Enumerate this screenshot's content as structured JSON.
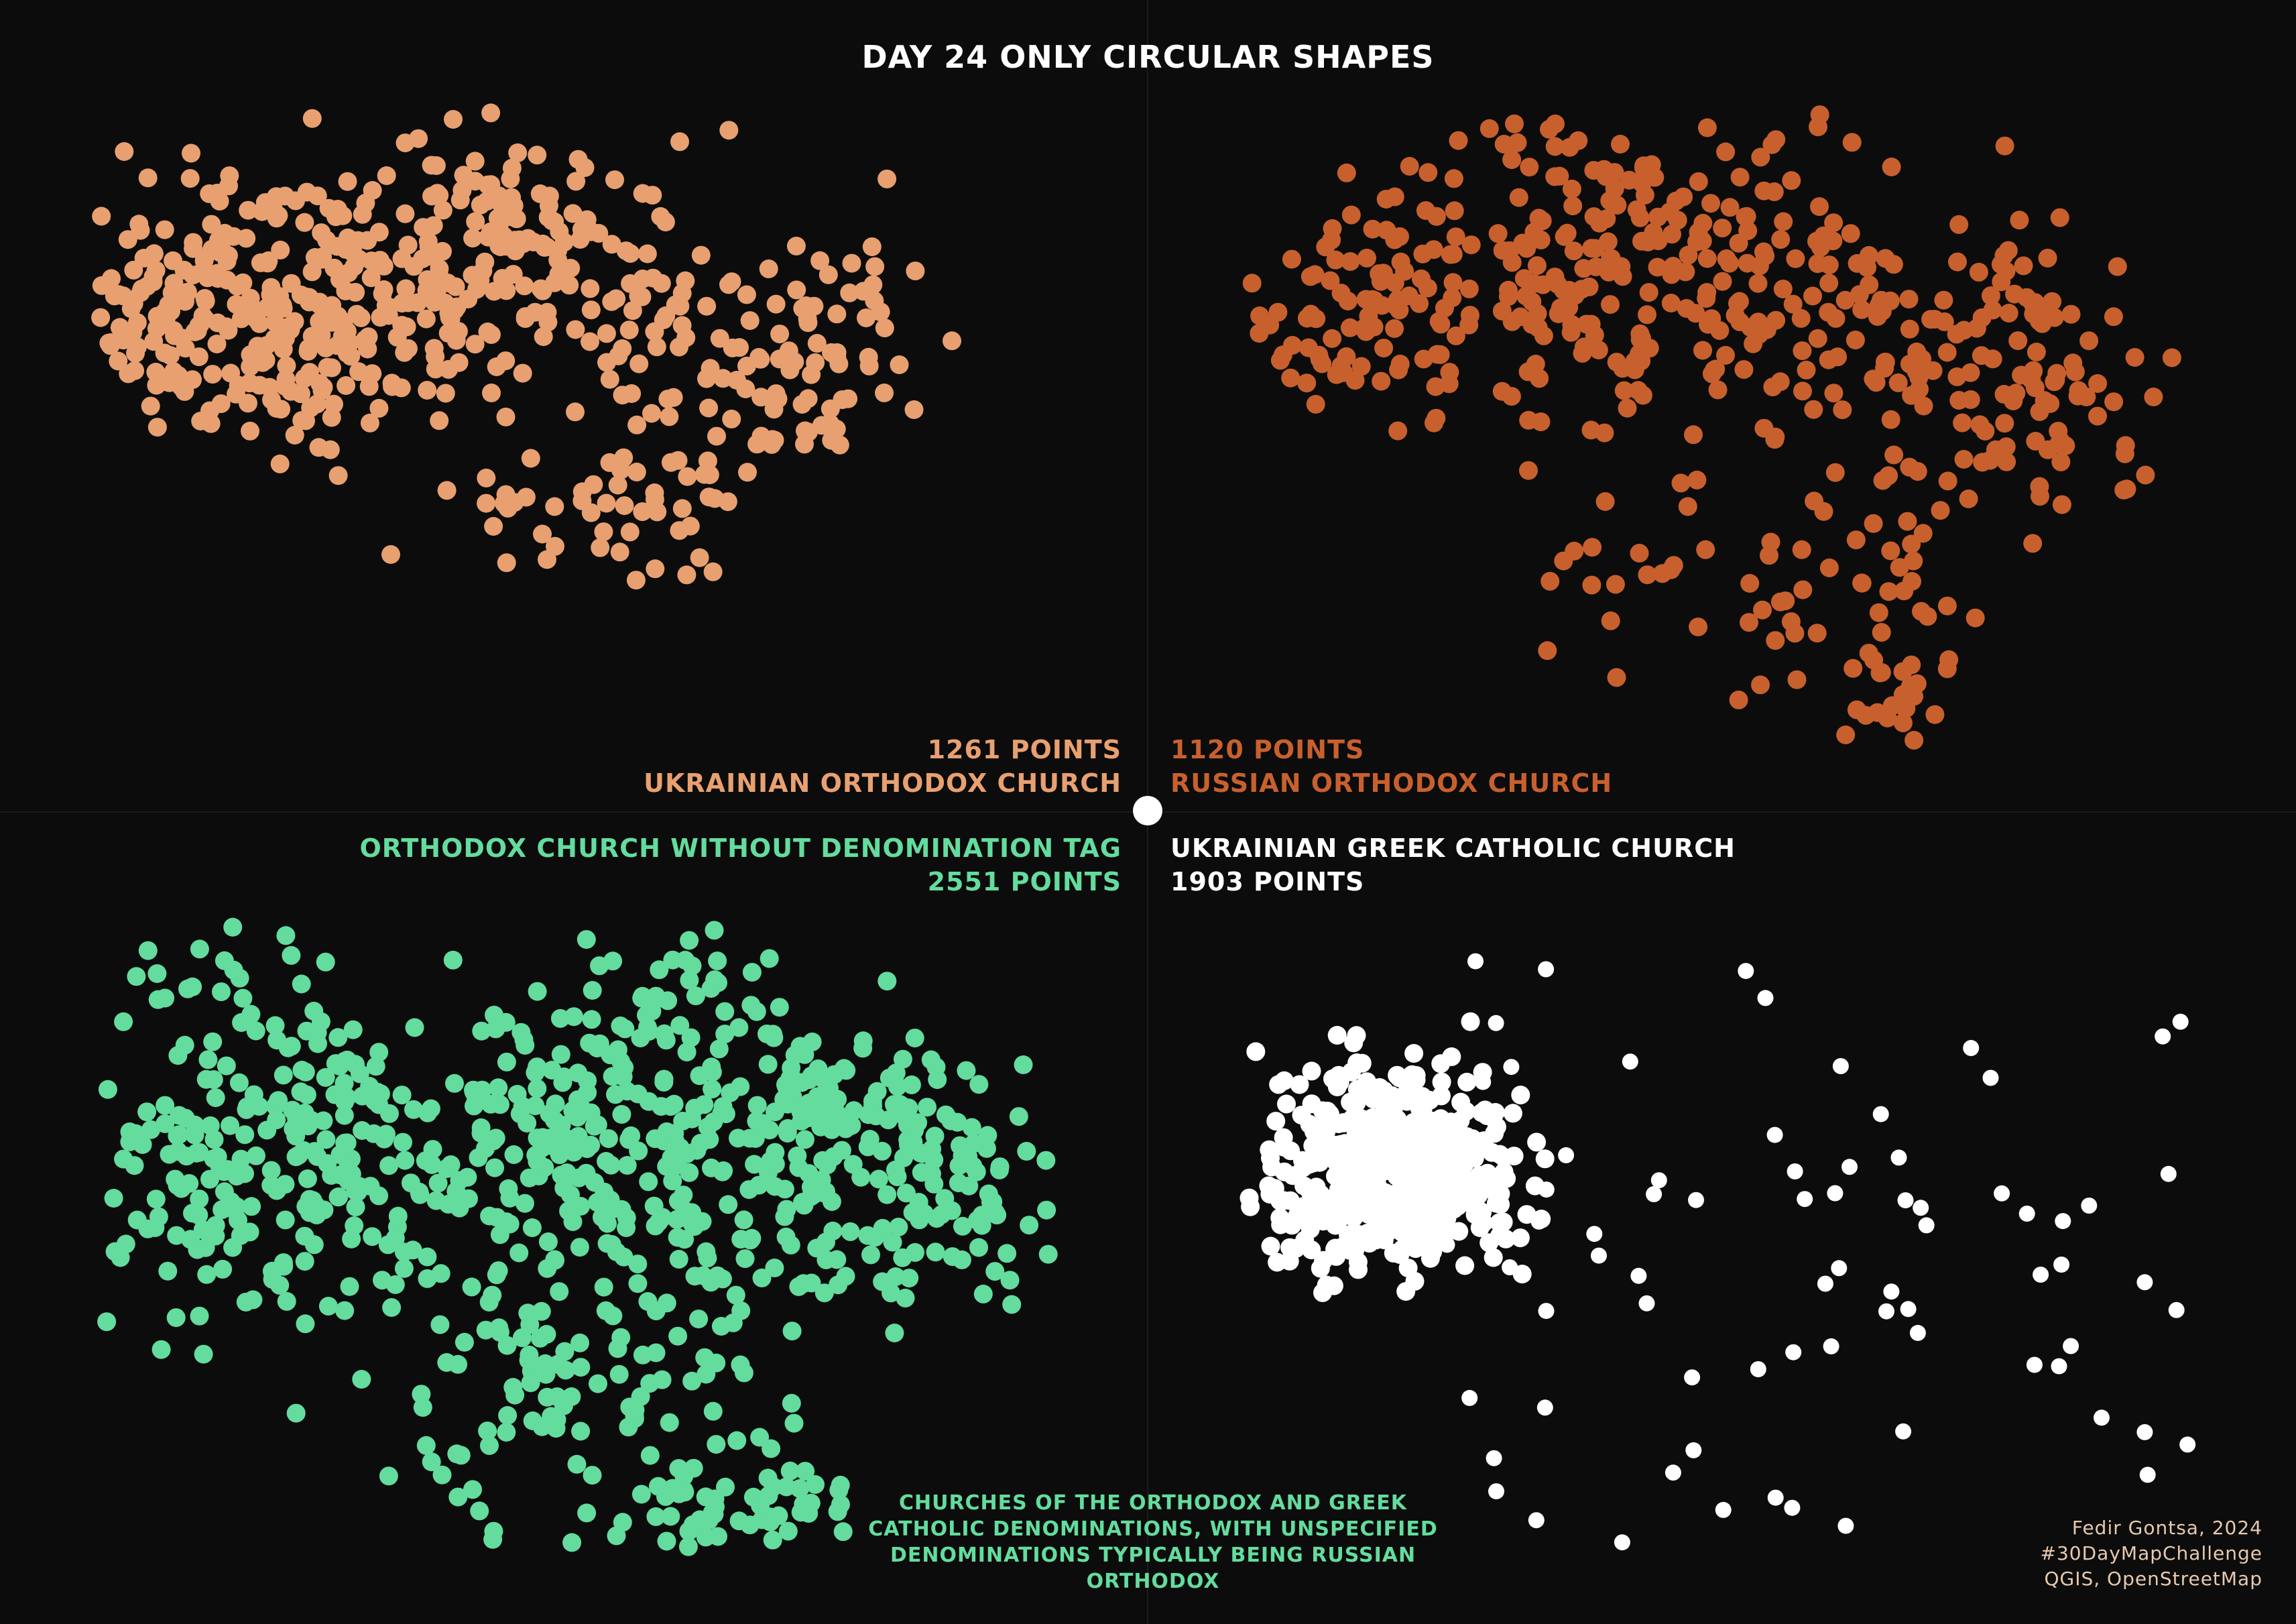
{
  "title": "DAY 24 ONLY CIRCULAR SHAPES",
  "colors": {
    "background": "#0c0c0c",
    "ukrainian_orthodox": "#e8a070",
    "russian_orthodox": "#c8602e",
    "no_denomination": "#63dc9e",
    "greek_catholic": "#ffffff",
    "credits": "#e8c9ad"
  },
  "panels": [
    {
      "id": "ukrainian-orthodox",
      "name": "UKRAINIAN ORTHODOX CHURCH",
      "count_text": "1261 POINTS",
      "point_count": 1261,
      "color": "#e8a070"
    },
    {
      "id": "russian-orthodox",
      "name": "RUSSIAN ORTHODOX CHURCH",
      "count_text": "1120 POINTS",
      "point_count": 1120,
      "color": "#c8602e"
    },
    {
      "id": "no-denomination",
      "name": "ORTHODOX CHURCH WITHOUT DENOMINATION TAG",
      "count_text": "2551 POINTS",
      "point_count": 2551,
      "color": "#63dc9e"
    },
    {
      "id": "greek-catholic",
      "name": "UKRAINIAN GREEK CATHOLIC CHURCH",
      "count_text": "1903 POINTS",
      "point_count": 1903,
      "color": "#ffffff"
    }
  ],
  "footnote": [
    "CHURCHES OF THE ORTHODOX AND GREEK",
    "CATHOLIC DENOMINATIONS, WITH UNSPECIFIED",
    "DENOMINATIONS TYPICALLY BEING RUSSIAN",
    "ORTHODOX"
  ],
  "credits": [
    "Fedir Gontsa, 2024",
    "#30DayMapChallenge",
    "QGIS, OpenStreetMap"
  ]
}
